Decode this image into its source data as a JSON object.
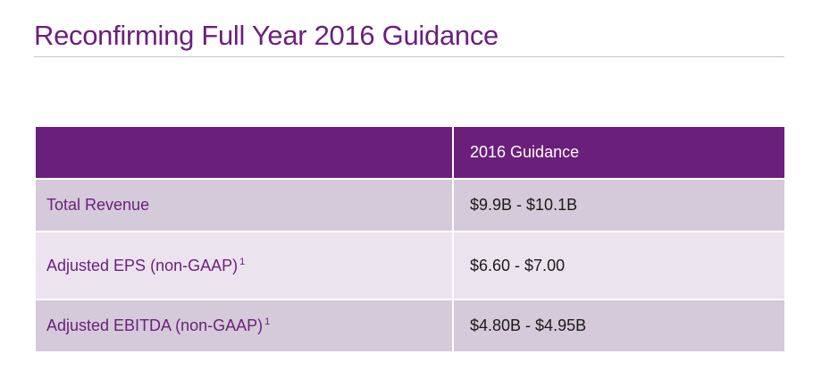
{
  "slide": {
    "title": "Reconfirming Full Year 2016 Guidance"
  },
  "table": {
    "header": {
      "col1": "",
      "col2": "2016 Guidance"
    },
    "rows": [
      {
        "label": "Total Revenue",
        "footnote": "",
        "value": "$9.9B - $10.1B"
      },
      {
        "label": "Adjusted EPS (non-GAAP)",
        "footnote": "1",
        "value": "$6.60 - $7.00"
      },
      {
        "label": "Adjusted EBITDA (non-GAAP)",
        "footnote": "1",
        "value": "$4.80B - $4.95B"
      }
    ]
  },
  "colors": {
    "accent": "#6b1f7c",
    "row_dark": "#d5cad9",
    "row_light": "#ebe4ee"
  }
}
